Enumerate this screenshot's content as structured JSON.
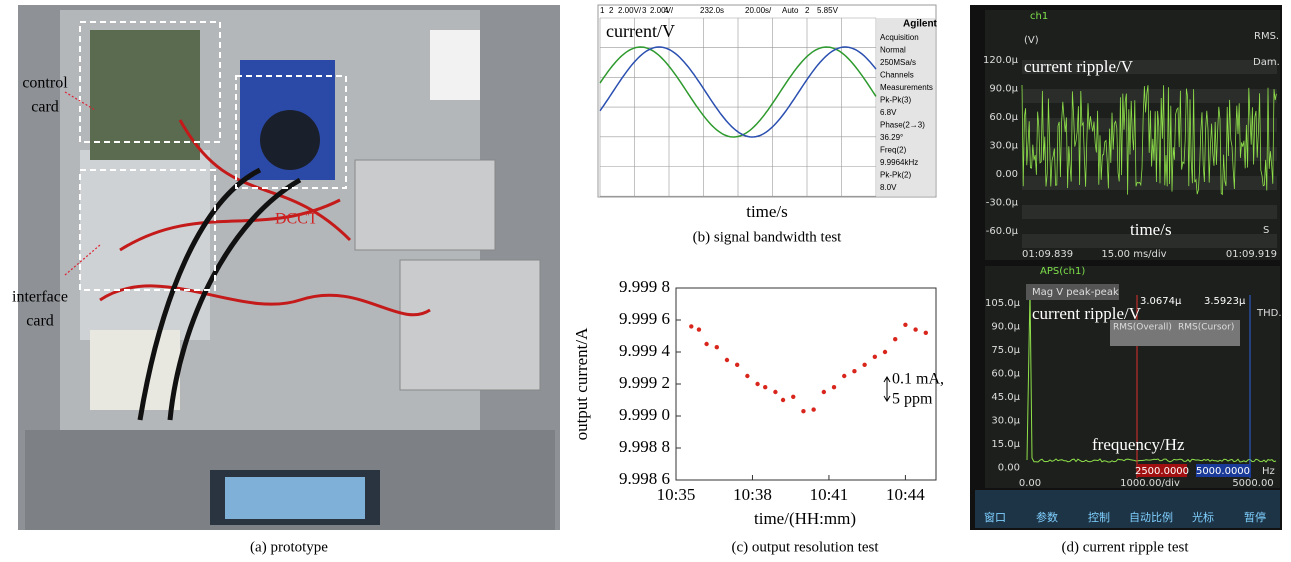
{
  "panel_a": {
    "caption": "(a) prototype",
    "control_card": [
      "control",
      "card"
    ],
    "interface_card": [
      "interface",
      "card"
    ],
    "dcct": "DCCT"
  },
  "panel_b": {
    "caption": "(b) signal bandwidth test",
    "y_label": "current/V",
    "x_label": "time/s",
    "brand": "Agilent",
    "header": [
      "1",
      "2",
      "2.00V/",
      "3",
      "2.00V/",
      "4",
      "232.0s",
      "20.00s/",
      "Auto",
      "2",
      "5.85V"
    ],
    "side": [
      "Acquisition",
      "Normal",
      "250MSa/s",
      "Channels",
      "Measurements",
      "Pk-Pk(3)",
      "6.8V",
      "Phase(2→3)",
      "36.29°",
      "Freq(2)",
      "9.9964kHz",
      "Pk-Pk(2)",
      "8.0V"
    ]
  },
  "chart_data": {
    "type": "scatter",
    "caption": "(c) output resolution test",
    "x_label": "time/(HH:mm)",
    "y_label": "output current/A",
    "annotation": [
      "0.1 mA,",
      "5 ppm"
    ],
    "color": "#d9261c",
    "x": [
      635.6,
      635.9,
      636.2,
      636.6,
      637.0,
      637.4,
      637.8,
      638.2,
      638.5,
      638.9,
      639.2,
      639.6,
      640.0,
      640.4,
      640.8,
      641.2,
      641.6,
      642.0,
      642.4,
      642.8,
      643.2,
      643.6,
      644.0,
      644.4,
      644.8
    ],
    "values": [
      9.99956,
      9.99954,
      9.99945,
      9.99943,
      9.99935,
      9.99932,
      9.99925,
      9.9992,
      9.99918,
      9.99915,
      9.9991,
      9.99912,
      9.99903,
      9.99904,
      9.99915,
      9.99918,
      9.99925,
      9.99928,
      9.99932,
      9.99937,
      9.9994,
      9.99948,
      9.99957,
      9.99954,
      9.99952
    ],
    "xlim": [
      635,
      645.2
    ],
    "xticks": [
      {
        "value": 635,
        "label": "10:35"
      },
      {
        "value": 638,
        "label": "10:38"
      },
      {
        "value": 641,
        "label": "10:41"
      },
      {
        "value": 644,
        "label": "10:44"
      }
    ],
    "ylim": [
      9.9986,
      9.9998
    ],
    "yticks": [
      {
        "value": 9.9986,
        "label": "9.998 6"
      },
      {
        "value": 9.9988,
        "label": "9.998 8"
      },
      {
        "value": 9.999,
        "label": "9.999 0"
      },
      {
        "value": 9.9992,
        "label": "9.999 2"
      },
      {
        "value": 9.9994,
        "label": "9.999 4"
      },
      {
        "value": 9.9996,
        "label": "9.999 6"
      },
      {
        "value": 9.9998,
        "label": "9.999 8"
      }
    ]
  },
  "panel_d": {
    "caption": "(d) current ripple test",
    "upper": {
      "channel": "ch1",
      "unit": "(V)",
      "rms": "RMS.",
      "dam": "Dam.",
      "y_label": "current ripple/V",
      "x_label": "time/s",
      "s": "S",
      "yticks": [
        "120.0μ",
        "90.0μ",
        "60.0μ",
        "30.0μ",
        "0.00",
        "-30.0μ",
        "-60.0μ"
      ],
      "footer": [
        "01:09.839",
        "15.00 ms/div",
        "01:09.919"
      ]
    },
    "lower": {
      "channel": "APS(ch1)",
      "mag": "Mag V peak-peak",
      "cursor_values": [
        "3.0674μ",
        "3.5923μ"
      ],
      "thd": "THD.",
      "rms": [
        "RMS(Overall)",
        "RMS(Cursor)"
      ],
      "y_label": "current ripple/V",
      "x_label": "frequency/Hz",
      "cursors": [
        "2500.0000",
        "5000.0000"
      ],
      "hz": "Hz",
      "yticks": [
        "105.0μ",
        "90.0μ",
        "75.0μ",
        "60.0μ",
        "45.0μ",
        "30.0μ",
        "15.0μ",
        "0.00"
      ],
      "footer": [
        "0.00",
        "1000.00/div",
        "5000.00"
      ]
    },
    "buttons": [
      "窗口",
      "参数",
      "控制",
      "自动比例",
      "光标",
      "暂停"
    ]
  }
}
